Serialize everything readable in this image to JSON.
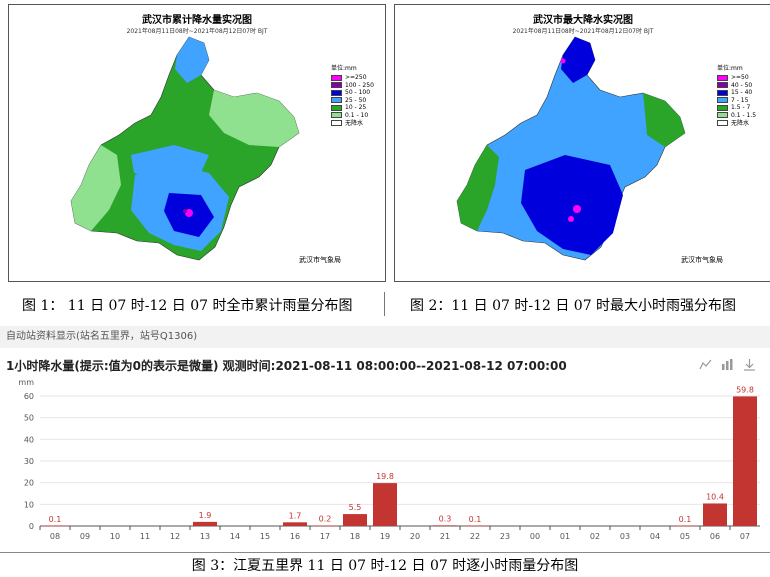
{
  "maps": [
    {
      "title": "武汉市累计降水量实况图",
      "subtitle": "2021年08月11日08时~2021年08月12日07时  BJT",
      "legend_title": "单位:mm",
      "legend": [
        {
          "label": ">=250",
          "color": "#ff00ff"
        },
        {
          "label": "100 - 250",
          "color": "#8800aa"
        },
        {
          "label": "50 - 100",
          "color": "#0000dd"
        },
        {
          "label": "25 - 50",
          "color": "#3fa3ff"
        },
        {
          "label": "10 - 25",
          "color": "#2aa52a"
        },
        {
          "label": "0.1 - 10",
          "color": "#8fe08f"
        },
        {
          "label": "无降水",
          "color": "#ffffff"
        }
      ],
      "credit": "武汉市气象局"
    },
    {
      "title": "武汉市最大降水实况图",
      "subtitle": "2021年08月11日08时~2021年08月12日07时  BJT",
      "legend_title": "单位:mm",
      "legend": [
        {
          "label": ">=50",
          "color": "#ff00ff"
        },
        {
          "label": "40 - 50",
          "color": "#8800aa"
        },
        {
          "label": "15 - 40",
          "color": "#0000dd"
        },
        {
          "label": "7 - 15",
          "color": "#3fa3ff"
        },
        {
          "label": "1.5 - 7",
          "color": "#2aa52a"
        },
        {
          "label": "0.1 - 1.5",
          "color": "#8fe08f"
        },
        {
          "label": "无降水",
          "color": "#ffffff"
        }
      ],
      "credit": "武汉市气象局"
    }
  ],
  "captions": {
    "fig1": "图 1： 11 日 07 时-12 日 07 时全市累计雨量分布图",
    "fig2": "图 2：11 日 07 时-12 日 07 时最大小时雨强分布图",
    "fig3": "图 3：江夏五里界 11 日 07 时-12 日 07 时逐小时雨量分布图"
  },
  "station_panel": {
    "label": "自动站资料显示(站名五里界，站号Q1306)"
  },
  "chart_heading": "1小时降水量(提示:值为0的表示是微量)   观测时间:2021-08-11 08:00:00--2021-08-12 07:00:00",
  "toolbox_icons": [
    "line-chart-icon",
    "bar-chart-icon",
    "download-icon"
  ],
  "chart_data": {
    "type": "bar",
    "ylabel": "mm",
    "ylim": [
      0,
      60
    ],
    "yticks": [
      0,
      10,
      20,
      30,
      40,
      50,
      60
    ],
    "bar_color": "#c23531",
    "categories": [
      "08",
      "09",
      "10",
      "11",
      "12",
      "13",
      "14",
      "15",
      "16",
      "17",
      "18",
      "19",
      "20",
      "21",
      "22",
      "23",
      "00",
      "01",
      "02",
      "03",
      "04",
      "05",
      "06",
      "07"
    ],
    "values": [
      0.1,
      null,
      null,
      null,
      null,
      1.9,
      null,
      null,
      1.7,
      0.2,
      5.5,
      19.8,
      null,
      0.3,
      0.1,
      null,
      null,
      null,
      null,
      null,
      null,
      0.1,
      10.4,
      59.8
    ]
  }
}
